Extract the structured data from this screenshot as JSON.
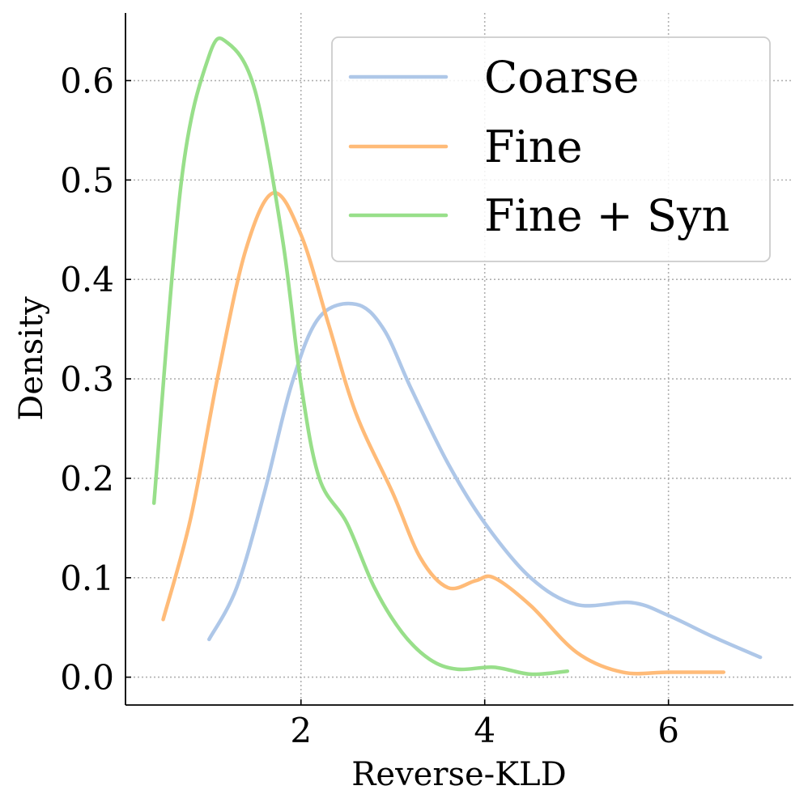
{
  "chart_data": {
    "type": "line",
    "xlabel": "Reverse-KLD",
    "ylabel": "Density",
    "xlim": [
      0.09,
      7.36
    ],
    "ylim": [
      -0.028,
      0.668
    ],
    "xticks": [
      2,
      4,
      6
    ],
    "xtick_labels": [
      "2",
      "4",
      "6"
    ],
    "yticks": [
      0.0,
      0.1,
      0.2,
      0.3,
      0.4,
      0.5,
      0.6
    ],
    "ytick_labels": [
      "0.0",
      "0.1",
      "0.2",
      "0.3",
      "0.4",
      "0.5",
      "0.6"
    ],
    "grid": true,
    "legend_position": "top-right",
    "series": [
      {
        "name": "Coarse",
        "color": "#aec7e8",
        "x": [
          1.0,
          1.3,
          1.6,
          1.9,
          2.2,
          2.6,
          2.9,
          3.2,
          3.6,
          4.0,
          4.5,
          5.0,
          5.6,
          6.0,
          6.5,
          7.0
        ],
        "y": [
          0.038,
          0.09,
          0.185,
          0.295,
          0.362,
          0.375,
          0.35,
          0.29,
          0.215,
          0.155,
          0.1,
          0.073,
          0.075,
          0.062,
          0.04,
          0.02
        ]
      },
      {
        "name": "Fine",
        "color": "#ffbb78",
        "x": [
          0.5,
          0.8,
          1.1,
          1.4,
          1.7,
          2.0,
          2.3,
          2.6,
          3.0,
          3.3,
          3.6,
          3.9,
          4.1,
          4.5,
          5.0,
          5.5,
          6.0,
          6.6
        ],
        "y": [
          0.058,
          0.16,
          0.305,
          0.43,
          0.487,
          0.445,
          0.355,
          0.265,
          0.185,
          0.12,
          0.09,
          0.097,
          0.1,
          0.072,
          0.025,
          0.005,
          0.005,
          0.005
        ]
      },
      {
        "name": "Fine + Syn",
        "color": "#98df8a",
        "x": [
          0.4,
          0.7,
          1.0,
          1.2,
          1.5,
          1.8,
          2.0,
          2.2,
          2.5,
          2.8,
          3.1,
          3.4,
          3.7,
          4.1,
          4.5,
          4.9
        ],
        "y": [
          0.175,
          0.5,
          0.625,
          0.638,
          0.59,
          0.44,
          0.295,
          0.2,
          0.155,
          0.09,
          0.045,
          0.018,
          0.008,
          0.01,
          0.003,
          0.006
        ]
      }
    ]
  }
}
